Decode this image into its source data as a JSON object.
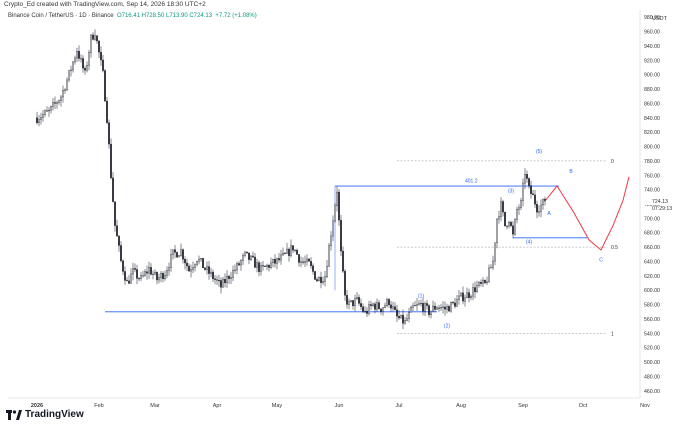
{
  "header": {
    "caption": "Crypto_Ed created with TradingView.com, Sep 14, 2026 18:30 UTC+2",
    "symbol": "Binance Coin / TetherUS · 1D · Binance",
    "ohlc": "O716.41 H728.50 L713.90 C724.13",
    "change": "+7.72 (+1.08%)",
    "currency": "USDT"
  },
  "branding": {
    "name": "TradingView"
  },
  "axis": {
    "y_ticks": [
      "980.00",
      "960.00",
      "940.00",
      "920.00",
      "900.00",
      "880.00",
      "860.00",
      "840.00",
      "820.00",
      "800.00",
      "780.00",
      "760.00",
      "740.00",
      "720.00",
      "700.00",
      "680.00",
      "660.00",
      "640.00",
      "620.00",
      "600.00",
      "580.00",
      "560.00",
      "540.00",
      "520.00",
      "500.00",
      "480.00",
      "460.00"
    ],
    "x_ticks": [
      "2026",
      "Feb",
      "Mar",
      "Apr",
      "May",
      "Jun",
      "Jul",
      "Aug",
      "Sep",
      "Oct",
      "Nov"
    ],
    "price_label": "724.13",
    "countdown": "07:29:13"
  },
  "chart_data": {
    "type": "candlestick",
    "ylim": [
      450,
      990
    ],
    "y_tick_values": [
      980,
      960,
      940,
      920,
      900,
      880,
      860,
      840,
      820,
      800,
      780,
      760,
      740,
      720,
      700,
      680,
      660,
      640,
      620,
      600,
      580,
      560,
      540,
      520,
      500,
      480,
      460
    ],
    "months": [
      {
        "label": "2026",
        "index": 0
      },
      {
        "label": "Feb",
        "index": 31
      },
      {
        "label": "Mar",
        "index": 59
      },
      {
        "label": "Apr",
        "index": 90
      },
      {
        "label": "May",
        "index": 120
      },
      {
        "label": "Jun",
        "index": 151
      },
      {
        "label": "Jul",
        "index": 181
      },
      {
        "label": "Aug",
        "index": 212
      },
      {
        "label": "Sep",
        "index": 243
      },
      {
        "label": "Oct",
        "index": 273
      },
      {
        "label": "Nov",
        "index": 304
      }
    ],
    "close_path": [
      [
        0,
        840
      ],
      [
        6,
        848
      ],
      [
        12,
        870
      ],
      [
        16,
        900
      ],
      [
        20,
        935
      ],
      [
        24,
        900
      ],
      [
        27,
        950
      ],
      [
        29,
        960
      ],
      [
        31,
        930
      ],
      [
        33,
        900
      ],
      [
        35,
        840
      ],
      [
        37,
        760
      ],
      [
        39,
        690
      ],
      [
        42,
        640
      ],
      [
        45,
        610
      ],
      [
        48,
        625
      ],
      [
        52,
        615
      ],
      [
        56,
        630
      ],
      [
        60,
        615
      ],
      [
        64,
        625
      ],
      [
        68,
        650
      ],
      [
        72,
        655
      ],
      [
        76,
        628
      ],
      [
        80,
        645
      ],
      [
        84,
        630
      ],
      [
        88,
        618
      ],
      [
        92,
        605
      ],
      [
        96,
        620
      ],
      [
        100,
        632
      ],
      [
        104,
        648
      ],
      [
        108,
        640
      ],
      [
        112,
        628
      ],
      [
        116,
        635
      ],
      [
        120,
        640
      ],
      [
        124,
        648
      ],
      [
        128,
        660
      ],
      [
        132,
        640
      ],
      [
        136,
        636
      ],
      [
        140,
        615
      ],
      [
        144,
        620
      ],
      [
        148,
        700
      ],
      [
        150,
        740
      ],
      [
        152,
        650
      ],
      [
        154,
        590
      ],
      [
        156,
        580
      ],
      [
        160,
        585
      ],
      [
        164,
        568
      ],
      [
        168,
        580
      ],
      [
        172,
        575
      ],
      [
        176,
        585
      ],
      [
        180,
        562
      ],
      [
        184,
        555
      ],
      [
        188,
        575
      ],
      [
        192,
        580
      ],
      [
        196,
        570
      ],
      [
        200,
        578
      ],
      [
        204,
        574
      ],
      [
        208,
        580
      ],
      [
        212,
        590
      ],
      [
        216,
        595
      ],
      [
        220,
        605
      ],
      [
        224,
        608
      ],
      [
        228,
        640
      ],
      [
        230,
        700
      ],
      [
        232,
        718
      ],
      [
        234,
        690
      ],
      [
        236,
        700
      ],
      [
        238,
        675
      ],
      [
        240,
        712
      ],
      [
        242,
        720
      ],
      [
        244,
        765
      ],
      [
        246,
        740
      ],
      [
        248,
        730
      ],
      [
        250,
        715
      ],
      [
        252,
        718
      ],
      [
        254,
        724
      ]
    ],
    "candle_count": 255,
    "final_close": 724.13,
    "levels": [
      {
        "id": "ath-zone",
        "value": 745,
        "from": 149,
        "to": 261
      },
      {
        "id": "support",
        "value": 570,
        "from": 34,
        "to": 200
      },
      {
        "id": "wave4",
        "value": 673,
        "from": 238,
        "to": 275
      },
      {
        "id": "fib-0",
        "value": 780,
        "from": 180,
        "to": 285,
        "label": "0"
      },
      {
        "id": "fib-05",
        "value": 660,
        "from": 180,
        "to": 285,
        "label": "0.5"
      },
      {
        "id": "fib-1",
        "value": 540,
        "from": 180,
        "to": 285,
        "label": "1"
      }
    ],
    "level_labels": [
      {
        "text": "401.2",
        "x": 214,
        "y": 750
      }
    ],
    "projection": [
      [
        254,
        724
      ],
      [
        260,
        745
      ],
      [
        268,
        710
      ],
      [
        276,
        670
      ],
      [
        282,
        656
      ],
      [
        288,
        690
      ],
      [
        293,
        725
      ],
      [
        296,
        758
      ]
    ],
    "waves": [
      {
        "label": "(1)",
        "x": 192,
        "y": 590
      },
      {
        "label": "(2)",
        "x": 205,
        "y": 548
      },
      {
        "label": "(3)",
        "x": 237,
        "y": 736
      },
      {
        "label": "(4)",
        "x": 246,
        "y": 665
      },
      {
        "label": "(5)",
        "x": 251,
        "y": 791
      },
      {
        "label": "A",
        "x": 256,
        "y": 705
      },
      {
        "label": "B",
        "x": 267,
        "y": 763
      },
      {
        "label": "C",
        "x": 282,
        "y": 640
      }
    ]
  }
}
